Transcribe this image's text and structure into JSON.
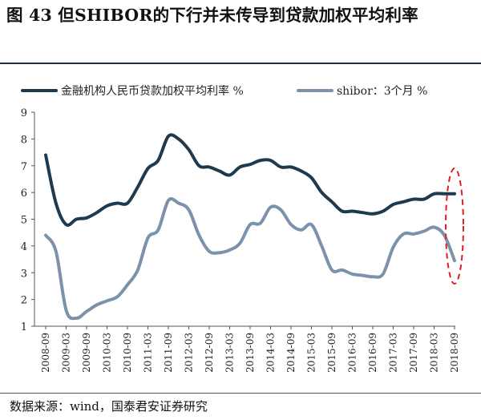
{
  "title": "图 43 但SHIBOR的下行并未传导到贷款加权平均利率",
  "source": "数据来源：wind，国泰君安证券研究",
  "chart_data": {
    "type": "line",
    "title": "图 43 但SHIBOR的下行并未传导到贷款加权平均利率",
    "ylim": [
      1,
      9
    ],
    "yticks": [
      "1",
      "2",
      "3",
      "4",
      "5",
      "6",
      "7",
      "8",
      "9"
    ],
    "xticks": [
      "2008-09",
      "2009-03",
      "2009-09",
      "2010-03",
      "2010-09",
      "2011-03",
      "2011-09",
      "2012-03",
      "2012-09",
      "2013-03",
      "2013-09",
      "2014-03",
      "2014-09",
      "2015-03",
      "2015-09",
      "2016-03",
      "2016-09",
      "2017-03",
      "2017-09",
      "2018-03",
      "2018-09"
    ],
    "grid": false,
    "legend_position": "top",
    "annotation": "red dashed ellipse around 2018-09 values",
    "series": [
      {
        "name": "金融机构人民币贷款加权平均利率 %",
        "color": "#1f3a4d",
        "points": [
          [
            "2008-09",
            7.4
          ],
          [
            "2008-12",
            5.6
          ],
          [
            "2009-03",
            4.8
          ],
          [
            "2009-06",
            5.0
          ],
          [
            "2009-09",
            5.05
          ],
          [
            "2009-12",
            5.25
          ],
          [
            "2010-03",
            5.5
          ],
          [
            "2010-06",
            5.6
          ],
          [
            "2010-09",
            5.6
          ],
          [
            "2010-12",
            6.2
          ],
          [
            "2011-03",
            6.9
          ],
          [
            "2011-06",
            7.2
          ],
          [
            "2011-09",
            8.1
          ],
          [
            "2011-12",
            8.0
          ],
          [
            "2012-03",
            7.6
          ],
          [
            "2012-06",
            7.0
          ],
          [
            "2012-09",
            6.95
          ],
          [
            "2012-12",
            6.8
          ],
          [
            "2013-03",
            6.65
          ],
          [
            "2013-06",
            6.95
          ],
          [
            "2013-09",
            7.05
          ],
          [
            "2013-12",
            7.2
          ],
          [
            "2014-03",
            7.2
          ],
          [
            "2014-06",
            6.95
          ],
          [
            "2014-09",
            6.95
          ],
          [
            "2014-12",
            6.8
          ],
          [
            "2015-03",
            6.55
          ],
          [
            "2015-06",
            6.0
          ],
          [
            "2015-09",
            5.65
          ],
          [
            "2015-12",
            5.3
          ],
          [
            "2016-03",
            5.3
          ],
          [
            "2016-06",
            5.25
          ],
          [
            "2016-09",
            5.2
          ],
          [
            "2016-12",
            5.3
          ],
          [
            "2017-03",
            5.55
          ],
          [
            "2017-06",
            5.65
          ],
          [
            "2017-09",
            5.75
          ],
          [
            "2017-12",
            5.75
          ],
          [
            "2018-03",
            5.95
          ],
          [
            "2018-06",
            5.95
          ],
          [
            "2018-09",
            5.95
          ]
        ]
      },
      {
        "name": "shibor：3个月 %",
        "color": "#7c92aa",
        "points": [
          [
            "2008-09",
            4.4
          ],
          [
            "2008-12",
            3.8
          ],
          [
            "2009-03",
            1.6
          ],
          [
            "2009-06",
            1.3
          ],
          [
            "2009-09",
            1.55
          ],
          [
            "2009-12",
            1.8
          ],
          [
            "2010-03",
            1.95
          ],
          [
            "2010-06",
            2.1
          ],
          [
            "2010-09",
            2.55
          ],
          [
            "2010-12",
            3.1
          ],
          [
            "2011-03",
            4.3
          ],
          [
            "2011-06",
            4.6
          ],
          [
            "2011-09",
            5.7
          ],
          [
            "2011-12",
            5.6
          ],
          [
            "2012-03",
            5.35
          ],
          [
            "2012-06",
            4.4
          ],
          [
            "2012-09",
            3.8
          ],
          [
            "2012-12",
            3.75
          ],
          [
            "2013-03",
            3.85
          ],
          [
            "2013-06",
            4.1
          ],
          [
            "2013-09",
            4.8
          ],
          [
            "2013-12",
            4.85
          ],
          [
            "2014-03",
            5.45
          ],
          [
            "2014-06",
            5.35
          ],
          [
            "2014-09",
            4.8
          ],
          [
            "2014-12",
            4.6
          ],
          [
            "2015-03",
            4.8
          ],
          [
            "2015-06",
            4.0
          ],
          [
            "2015-09",
            3.1
          ],
          [
            "2015-12",
            3.1
          ],
          [
            "2016-03",
            2.95
          ],
          [
            "2016-06",
            2.9
          ],
          [
            "2016-09",
            2.85
          ],
          [
            "2016-12",
            2.95
          ],
          [
            "2017-03",
            3.95
          ],
          [
            "2017-06",
            4.45
          ],
          [
            "2017-09",
            4.45
          ],
          [
            "2017-12",
            4.55
          ],
          [
            "2018-03",
            4.7
          ],
          [
            "2018-06",
            4.4
          ],
          [
            "2018-09",
            3.45
          ]
        ]
      }
    ]
  }
}
